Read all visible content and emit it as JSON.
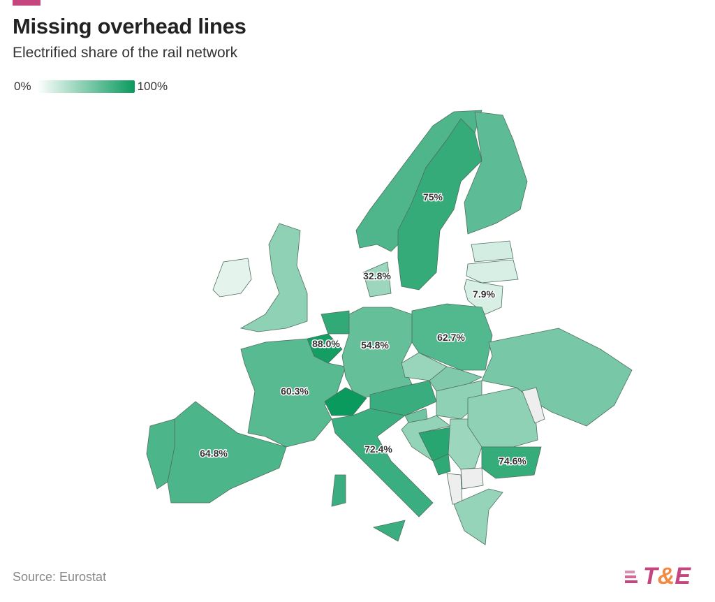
{
  "header": {
    "title": "Missing overhead lines",
    "subtitle": "Electrified share of the rail network"
  },
  "legend": {
    "min_label": "0%",
    "max_label": "100%",
    "min_color": "#ffffff",
    "max_color": "#0a9a5e",
    "no_data_color": "#eeeeee"
  },
  "footer": {
    "source": "Source: Eurostat",
    "logo_text_t": "T",
    "logo_text_amp": "&",
    "logo_text_e": "E"
  },
  "chart_data": {
    "type": "choropleth",
    "title": "Missing overhead lines",
    "subtitle": "Electrified share of the rail network",
    "unit": "%",
    "range": [
      0,
      100
    ],
    "countries": [
      {
        "name": "Sweden",
        "value": 75,
        "label": "75%"
      },
      {
        "name": "Denmark",
        "value": 32.8,
        "label": "32.8%"
      },
      {
        "name": "Lithuania",
        "value": 7.9,
        "label": "7.9%"
      },
      {
        "name": "Belgium",
        "value": 88.0,
        "label": "88.0%"
      },
      {
        "name": "Germany",
        "value": 54.8,
        "label": "54.8%"
      },
      {
        "name": "Poland",
        "value": 62.7,
        "label": "62.7%"
      },
      {
        "name": "France",
        "value": 60.3,
        "label": "60.3%"
      },
      {
        "name": "Italy",
        "value": 72.4,
        "label": "72.4%"
      },
      {
        "name": "Spain",
        "value": 64.8,
        "label": "64.8%"
      },
      {
        "name": "Bulgaria",
        "value": 74.6,
        "label": "74.6%"
      },
      {
        "name": "Norway",
        "value": 64
      },
      {
        "name": "Finland",
        "value": 58
      },
      {
        "name": "Estonia",
        "value": 10
      },
      {
        "name": "Latvia",
        "value": 8
      },
      {
        "name": "United Kingdom",
        "value": 38
      },
      {
        "name": "Ireland",
        "value": 3
      },
      {
        "name": "Portugal",
        "value": 65
      },
      {
        "name": "Netherlands",
        "value": 76
      },
      {
        "name": "Czechia",
        "value": 34
      },
      {
        "name": "Austria",
        "value": 73
      },
      {
        "name": "Switzerland",
        "value": 100
      },
      {
        "name": "Slovakia",
        "value": 44
      },
      {
        "name": "Hungary",
        "value": 38
      },
      {
        "name": "Croatia",
        "value": 36
      },
      {
        "name": "Slovenia",
        "value": 50
      },
      {
        "name": "Bosnia and Herzegovina",
        "value": 80
      },
      {
        "name": "Serbia",
        "value": 33
      },
      {
        "name": "Montenegro",
        "value": 77
      },
      {
        "name": "Romania",
        "value": 38
      },
      {
        "name": "Greece",
        "value": 35
      },
      {
        "name": "Ukraine",
        "value": 47
      },
      {
        "name": "Albania",
        "value": null
      },
      {
        "name": "North Macedonia",
        "value": null
      },
      {
        "name": "Moldova",
        "value": null
      }
    ]
  }
}
